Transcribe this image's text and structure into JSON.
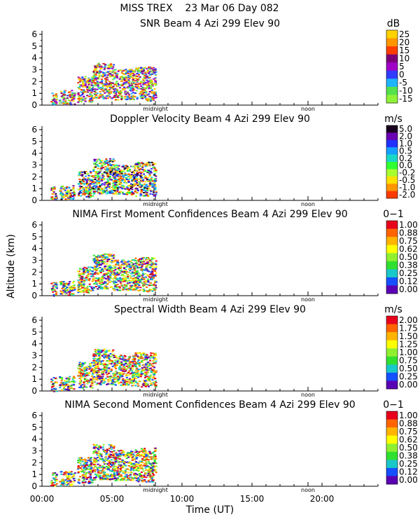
{
  "figure": {
    "header": "MISS TREX    23 Mar 06 Day 082",
    "ylabel": "Altitude (km)",
    "xlabel": "Time (UT)",
    "xticks": [
      "00:00",
      "05:00",
      "10:00",
      "15:00",
      "20:00"
    ]
  },
  "chart_data": [
    {
      "type": "heatmap",
      "title": "SNR Beam 4 Azi 299 Elev 90",
      "unit": "dB",
      "colorbar": [
        "25",
        "20",
        "15",
        "10",
        "5",
        "0",
        "-5",
        "-10",
        "-15"
      ],
      "colors": [
        "#ffd200",
        "#ff9600",
        "#ff3c00",
        "#7a0078",
        "#a000c8",
        "#2f3cff",
        "#1fb4ff",
        "#56e04c",
        "#8ef238"
      ],
      "xlim": [
        0,
        24
      ],
      "ylim": [
        0,
        6.3
      ],
      "yticks": [
        "0",
        "1",
        "2",
        "3",
        "4",
        "5",
        "6"
      ],
      "markers": [
        "midnight",
        "noon"
      ]
    },
    {
      "type": "heatmap",
      "title": "Doppler Velocity Beam 4 Azi 299 Elev 90",
      "unit": "m/s",
      "colorbar": [
        "5.0",
        "2.0",
        "1.0",
        "0.5",
        "0.2",
        "0.0",
        "-0.2",
        "-0.5",
        "-1.0",
        "-2.0"
      ],
      "colors": [
        "#1a0020",
        "#6a00b4",
        "#2030ff",
        "#14a0ff",
        "#19d8c8",
        "#30ff30",
        "#a8ff30",
        "#ffe000",
        "#ff9600",
        "#ff3a00"
      ],
      "xlim": [
        0,
        24
      ],
      "ylim": [
        0,
        6.3
      ],
      "yticks": [
        "0",
        "1",
        "2",
        "3",
        "4",
        "5",
        "6"
      ],
      "markers": [
        "midnight",
        "noon"
      ]
    },
    {
      "type": "heatmap",
      "title": "NIMA First Moment Confidences Beam 4 Azi 299 Elev 90",
      "unit": "0−1",
      "colorbar": [
        "1.00",
        "0.88",
        "0.75",
        "0.62",
        "0.50",
        "0.38",
        "0.25",
        "0.12",
        "0.00"
      ],
      "colors": [
        "#e8001c",
        "#ff6400",
        "#ffb400",
        "#ffff00",
        "#90f030",
        "#30e030",
        "#19c8c8",
        "#1450ff",
        "#5a00b4"
      ],
      "xlim": [
        0,
        24
      ],
      "ylim": [
        0,
        6.3
      ],
      "yticks": [
        "0",
        "1",
        "2",
        "3",
        "4",
        "5",
        "6"
      ],
      "markers": [
        "midnight",
        "noon"
      ]
    },
    {
      "type": "heatmap",
      "title": "Spectral Width Beam 4 Azi 299 Elev 90",
      "unit": "m/s",
      "colorbar": [
        "2.00",
        "1.75",
        "1.50",
        "1.25",
        "1.00",
        "0.75",
        "0.50",
        "0.25",
        "0.00"
      ],
      "colors": [
        "#e8001c",
        "#ff6400",
        "#ffb400",
        "#ffff00",
        "#90f030",
        "#30e030",
        "#19c8c8",
        "#1450ff",
        "#5a00b4"
      ],
      "xlim": [
        0,
        24
      ],
      "ylim": [
        0,
        6.3
      ],
      "yticks": [
        "0",
        "1",
        "2",
        "3",
        "4",
        "5",
        "6"
      ],
      "markers": [
        "midnight",
        "noon"
      ]
    },
    {
      "type": "heatmap",
      "title": "NIMA Second Moment Confidences Beam 4 Azi 299 Elev 90",
      "unit": "0−1",
      "colorbar": [
        "1.00",
        "0.88",
        "0.75",
        "0.62",
        "0.50",
        "0.38",
        "0.25",
        "0.12",
        "0.00"
      ],
      "colors": [
        "#e8001c",
        "#ff6400",
        "#ffb400",
        "#ffff00",
        "#90f030",
        "#30e030",
        "#19c8c8",
        "#1450ff",
        "#5a00b4"
      ],
      "xlim": [
        0,
        24
      ],
      "ylim": [
        0,
        6.3
      ],
      "yticks": [
        "0",
        "1",
        "2",
        "3",
        "4",
        "5",
        "6"
      ],
      "markers": [
        "midnight",
        "noon"
      ]
    }
  ]
}
